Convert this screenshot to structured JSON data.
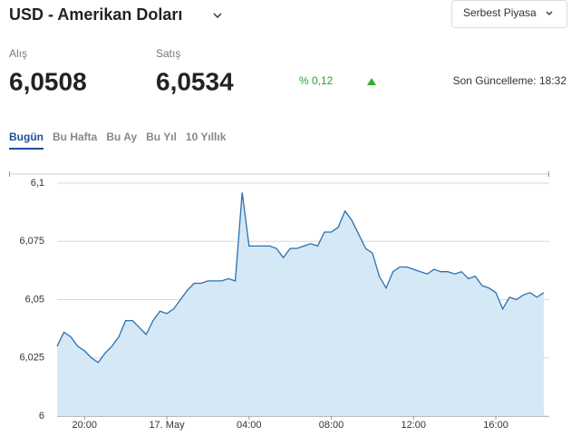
{
  "header": {
    "title": "USD - Amerikan Doları",
    "market": "Serbest Piyasa"
  },
  "quote": {
    "buy_label": "Alış",
    "buy": "6,0508",
    "sell_label": "Satış",
    "sell": "6,0534",
    "change": "% 0,12",
    "updated": "Son Güncelleme: 18:32"
  },
  "tabs": [
    "Bugün",
    "Bu Hafta",
    "Bu Ay",
    "Bu Yıl",
    "10 Yıllık"
  ],
  "chart_data": {
    "type": "area",
    "color": "#2a6fb0",
    "fill": "#d5e8f6",
    "grid": true,
    "x": [
      "18:40",
      "19:00",
      "19:20",
      "19:40",
      "20:00",
      "20:20",
      "20:40",
      "21:00",
      "21:20",
      "21:40",
      "22:00",
      "22:20",
      "22:40",
      "23:00",
      "23:20",
      "23:40",
      "00:00",
      "00:20",
      "00:40",
      "01:00",
      "01:20",
      "01:40",
      "02:00",
      "02:20",
      "02:40",
      "03:00",
      "03:20",
      "03:40",
      "04:00",
      "04:20",
      "04:40",
      "05:00",
      "05:20",
      "05:40",
      "06:00",
      "06:20",
      "06:40",
      "07:00",
      "07:20",
      "07:40",
      "08:00",
      "08:20",
      "08:40",
      "09:00",
      "09:20",
      "09:40",
      "10:00",
      "10:20",
      "10:40",
      "11:00",
      "11:20",
      "11:40",
      "12:00",
      "12:20",
      "12:40",
      "13:00",
      "13:20",
      "13:40",
      "14:00",
      "14:20",
      "14:40",
      "15:00",
      "15:20",
      "15:40",
      "16:00",
      "16:20",
      "16:40",
      "17:00",
      "17:20",
      "17:40",
      "18:00",
      "18:20"
    ],
    "values": [
      6.03,
      6.036,
      6.034,
      6.03,
      6.028,
      6.025,
      6.023,
      6.027,
      6.03,
      6.034,
      6.041,
      6.041,
      6.038,
      6.035,
      6.041,
      6.045,
      6.044,
      6.046,
      6.05,
      6.054,
      6.057,
      6.057,
      6.058,
      6.058,
      6.058,
      6.059,
      6.058,
      6.096,
      6.073,
      6.073,
      6.073,
      6.073,
      6.072,
      6.068,
      6.072,
      6.072,
      6.073,
      6.074,
      6.073,
      6.079,
      6.079,
      6.081,
      6.088,
      6.084,
      6.078,
      6.072,
      6.07,
      6.06,
      6.055,
      6.062,
      6.064,
      6.064,
      6.063,
      6.062,
      6.061,
      6.063,
      6.062,
      6.062,
      6.061,
      6.062,
      6.059,
      6.06,
      6.056,
      6.055,
      6.053,
      6.046,
      6.051,
      6.05,
      6.052,
      6.053,
      6.051,
      6.053
    ],
    "ylim": [
      6,
      6.1
    ],
    "yticks": [
      6,
      {
        "value": 6.025,
        "label": "6,025"
      },
      {
        "value": 6.05,
        "label": "6,05"
      },
      {
        "value": 6.075,
        "label": "6,075"
      },
      {
        "value": 6.1,
        "label": "6,1"
      }
    ],
    "xticks": [
      {
        "value": "20:00",
        "label": "20:00"
      },
      {
        "value": "00:00",
        "label": "17. May"
      },
      {
        "value": "04:00",
        "label": "04:00"
      },
      {
        "value": "08:00",
        "label": "08:00"
      },
      {
        "value": "12:00",
        "label": "12:00"
      },
      {
        "value": "16:00",
        "label": "16:00"
      }
    ]
  }
}
